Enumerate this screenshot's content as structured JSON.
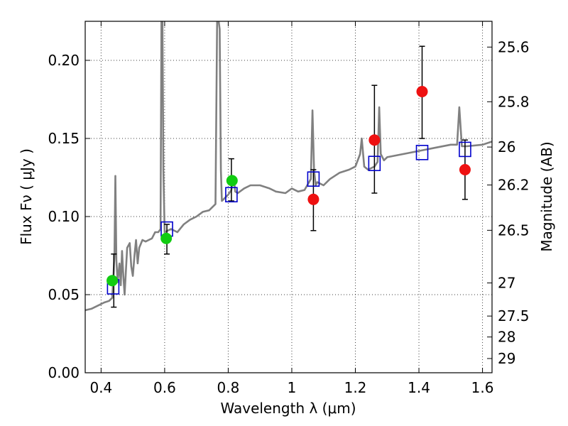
{
  "chart_data": {
    "type": "scatter",
    "xlabel": "Wavelength  λ (μm)",
    "ylabel": "Flux  Fν  ( μJy )",
    "y2label": "Magnitude (AB)",
    "xlim": [
      0.35,
      1.63
    ],
    "ylim": [
      0.0,
      0.225
    ],
    "grid": true,
    "x_ticks": [
      {
        "value": 0.4,
        "label": "0.4"
      },
      {
        "value": 0.6,
        "label": "0.6"
      },
      {
        "value": 0.8,
        "label": "0.8"
      },
      {
        "value": 1.0,
        "label": "1"
      },
      {
        "value": 1.2,
        "label": "1.2"
      },
      {
        "value": 1.4,
        "label": "1.4"
      },
      {
        "value": 1.6,
        "label": "1.6"
      }
    ],
    "y_ticks": [
      {
        "value": 0.0,
        "label": "0.00"
      },
      {
        "value": 0.05,
        "label": "0.05"
      },
      {
        "value": 0.1,
        "label": "0.10"
      },
      {
        "value": 0.15,
        "label": "0.15"
      },
      {
        "value": 0.2,
        "label": "0.20"
      }
    ],
    "y2_ticks": [
      {
        "label": "25.6",
        "flux": 0.2085
      },
      {
        "label": "25.8",
        "flux": 0.1735
      },
      {
        "label": "26",
        "flux": 0.1445
      },
      {
        "label": "26.2",
        "flux": 0.1202
      },
      {
        "label": "26.5",
        "flux": 0.0912
      },
      {
        "label": "27",
        "flux": 0.0575
      },
      {
        "label": "27.5",
        "flux": 0.0363
      },
      {
        "label": "28",
        "flux": 0.0229
      },
      {
        "label": "29",
        "flux": 0.0091
      }
    ],
    "colors": {
      "model": "#808080",
      "green_points": "#11cc11",
      "red_points": "#ee1111",
      "model_boxes": "#0000cc",
      "errorbars": "#000000"
    },
    "series": [
      {
        "kind": "line",
        "x": [
          0.35,
          0.37,
          0.39,
          0.41,
          0.425,
          0.435,
          0.442,
          0.445,
          0.448,
          0.452,
          0.458,
          0.462,
          0.466,
          0.47,
          0.474,
          0.478,
          0.482,
          0.49,
          0.495,
          0.5,
          0.505,
          0.51,
          0.515,
          0.52,
          0.53,
          0.54,
          0.55,
          0.56,
          0.57,
          0.58,
          0.587,
          0.59,
          0.593,
          0.596,
          0.6,
          0.62,
          0.64,
          0.66,
          0.68,
          0.7,
          0.72,
          0.74,
          0.76,
          0.765,
          0.77,
          0.773,
          0.777,
          0.78,
          0.79,
          0.8,
          0.81,
          0.815,
          0.818,
          0.822,
          0.83,
          0.85,
          0.87,
          0.9,
          0.93,
          0.95,
          0.98,
          1.0,
          1.02,
          1.04,
          1.06,
          1.065,
          1.07,
          1.075,
          1.08,
          1.1,
          1.12,
          1.15,
          1.18,
          1.2,
          1.215,
          1.22,
          1.228,
          1.24,
          1.26,
          1.27,
          1.275,
          1.28,
          1.29,
          1.3,
          1.35,
          1.4,
          1.45,
          1.5,
          1.52,
          1.527,
          1.535,
          1.55,
          1.6,
          1.63
        ],
        "y": [
          0.04,
          0.041,
          0.043,
          0.045,
          0.046,
          0.048,
          0.075,
          0.126,
          0.072,
          0.058,
          0.07,
          0.056,
          0.078,
          0.062,
          0.05,
          0.065,
          0.08,
          0.083,
          0.068,
          0.062,
          0.075,
          0.085,
          0.07,
          0.08,
          0.085,
          0.084,
          0.085,
          0.086,
          0.09,
          0.09,
          0.092,
          0.225,
          0.225,
          0.13,
          0.09,
          0.092,
          0.09,
          0.095,
          0.098,
          0.1,
          0.103,
          0.104,
          0.108,
          0.225,
          0.225,
          0.22,
          0.13,
          0.11,
          0.112,
          0.114,
          0.117,
          0.125,
          0.124,
          0.116,
          0.115,
          0.118,
          0.12,
          0.12,
          0.118,
          0.116,
          0.115,
          0.118,
          0.116,
          0.117,
          0.124,
          0.168,
          0.13,
          0.12,
          0.122,
          0.12,
          0.124,
          0.128,
          0.13,
          0.132,
          0.14,
          0.15,
          0.132,
          0.13,
          0.132,
          0.135,
          0.17,
          0.14,
          0.136,
          0.138,
          0.14,
          0.142,
          0.144,
          0.146,
          0.146,
          0.17,
          0.145,
          0.145,
          0.146,
          0.148
        ]
      },
      {
        "kind": "points",
        "x": [
          0.435,
          0.605,
          0.812
        ],
        "y": [
          0.059,
          0.086,
          0.123
        ]
      },
      {
        "kind": "points",
        "x": [
          1.068,
          1.26,
          1.41,
          1.545
        ],
        "y": [
          0.111,
          0.149,
          0.18,
          0.13
        ]
      },
      {
        "kind": "boxes",
        "x": [
          0.438,
          0.607,
          0.81,
          1.068,
          1.26,
          1.41,
          1.545
        ],
        "y": [
          0.055,
          0.092,
          0.114,
          0.124,
          0.134,
          0.141,
          0.143
        ]
      }
    ],
    "errorbars": [
      {
        "x": 0.44,
        "low": 0.042,
        "high": 0.076
      },
      {
        "x": 0.607,
        "low": 0.076,
        "high": 0.095
      },
      {
        "x": 0.81,
        "low": 0.11,
        "high": 0.137
      },
      {
        "x": 1.068,
        "low": 0.091,
        "high": 0.13
      },
      {
        "x": 1.26,
        "low": 0.115,
        "high": 0.184
      },
      {
        "x": 1.41,
        "low": 0.15,
        "high": 0.209
      },
      {
        "x": 1.545,
        "low": 0.111,
        "high": 0.149
      }
    ]
  }
}
